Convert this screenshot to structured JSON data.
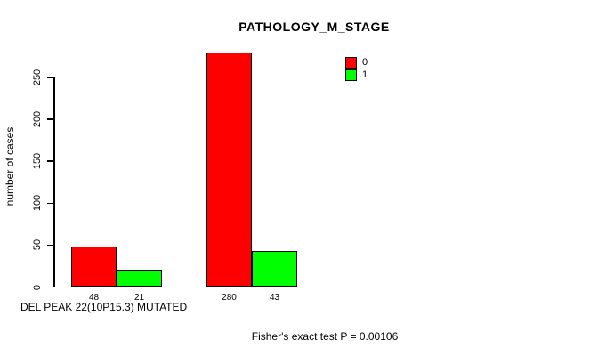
{
  "chart_data": {
    "type": "bar",
    "title": "PATHOLOGY_M_STAGE",
    "ylabel": "number of cases",
    "xlabel": "DEL PEAK 22(10P15.3) MUTATED",
    "annotation": "Fisher's exact test P = 0.00106",
    "yticks": [
      0,
      50,
      100,
      150,
      200,
      250
    ],
    "ylim": [
      0,
      280
    ],
    "grid": false,
    "legend": {
      "position": "top-right-inside",
      "entries": [
        {
          "label": "0",
          "color": "#FF0000"
        },
        {
          "label": "1",
          "color": "#00FF00"
        }
      ]
    },
    "series": [
      {
        "name": "0",
        "color": "#FF0000",
        "values": [
          48,
          280
        ]
      },
      {
        "name": "1",
        "color": "#00FF00",
        "values": [
          21,
          43
        ]
      }
    ],
    "bars": [
      {
        "series": "0",
        "group": 1,
        "value": 48,
        "label": "48",
        "color": "#FF0000"
      },
      {
        "series": "1",
        "group": 1,
        "value": 21,
        "label": "21",
        "color": "#00FF00"
      },
      {
        "series": "0",
        "group": 2,
        "value": 280,
        "label": "280",
        "color": "#FF0000"
      },
      {
        "series": "1",
        "group": 2,
        "value": 43,
        "label": "43",
        "color": "#00FF00"
      }
    ],
    "bar_value_labels_shown": true,
    "colors": {
      "series_0": "#FF0000",
      "series_1": "#00FF00",
      "axis": "#000000",
      "background": "#FFFFFF"
    }
  }
}
